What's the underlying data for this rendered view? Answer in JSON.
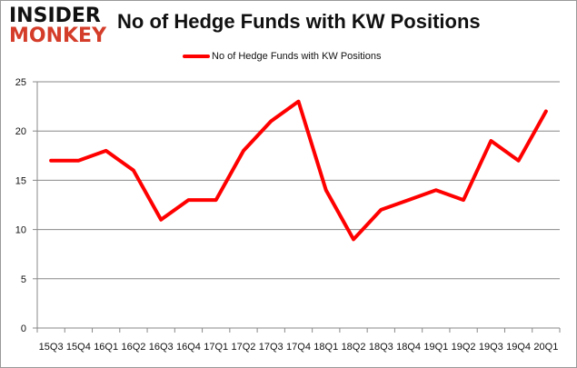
{
  "logo": {
    "line1": "INSIDER",
    "line2": "MONKEY"
  },
  "chart_data": {
    "type": "line",
    "title": "No of Hedge Funds with KW Positions",
    "categories": [
      "15Q3",
      "15Q4",
      "16Q1",
      "16Q2",
      "16Q3",
      "16Q4",
      "17Q1",
      "17Q2",
      "17Q3",
      "17Q4",
      "18Q1",
      "18Q2",
      "18Q3",
      "18Q4",
      "19Q1",
      "19Q2",
      "19Q3",
      "19Q4",
      "20Q1"
    ],
    "series": [
      {
        "name": "No of Hedge Funds with KW Positions",
        "color": "#ff0000",
        "values": [
          17,
          17,
          18,
          16,
          11,
          13,
          13,
          18,
          21,
          23,
          14,
          9,
          12,
          13,
          14,
          13,
          19,
          17,
          22
        ]
      }
    ],
    "ylim": [
      0,
      25
    ],
    "yticks": [
      0,
      5,
      10,
      15,
      20,
      25
    ],
    "grid": true,
    "legend": "top-center"
  }
}
